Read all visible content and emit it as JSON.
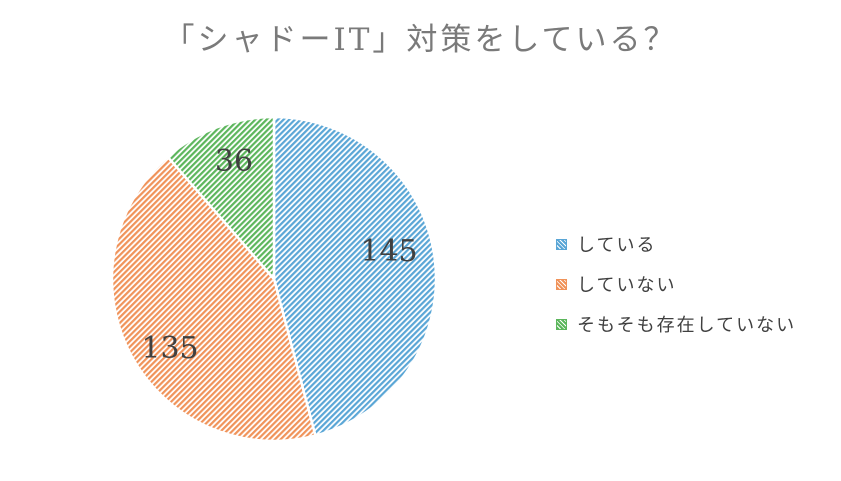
{
  "chart_data": {
    "type": "pie",
    "title": "「シャドーIT」対策をしている？",
    "categories": [
      "している",
      "していない",
      "そもそも存在していない"
    ],
    "values": [
      145,
      135,
      36
    ],
    "colors": [
      "#5aa6d6",
      "#f0935a",
      "#5cb65c"
    ],
    "fill_pattern": "diagonal hatch",
    "data_labels": [
      "145",
      "135",
      "36"
    ],
    "legend_position": "right"
  }
}
